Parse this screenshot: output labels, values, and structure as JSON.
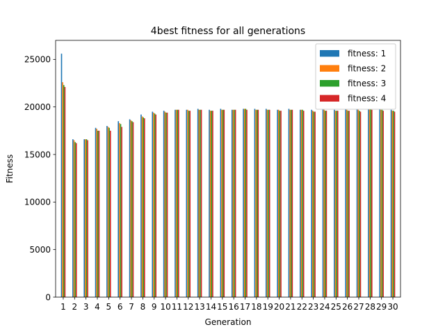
{
  "chart_data": {
    "type": "bar",
    "title": "4best fitness for all generations",
    "xlabel": "Generation",
    "ylabel": "Fitness",
    "ylim": [
      0,
      27000
    ],
    "yticks": [
      0,
      5000,
      10000,
      15000,
      20000,
      25000
    ],
    "ytick_labels": [
      "0",
      "5000",
      "10000",
      "15000",
      "20000",
      "25000"
    ],
    "categories": [
      "1",
      "2",
      "3",
      "4",
      "5",
      "6",
      "7",
      "8",
      "9",
      "10",
      "11",
      "12",
      "13",
      "14",
      "15",
      "16",
      "17",
      "18",
      "19",
      "20",
      "21",
      "22",
      "23",
      "24",
      "25",
      "26",
      "27",
      "28",
      "29",
      "30"
    ],
    "grid": false,
    "legend_position": "top-right",
    "series": [
      {
        "name": "fitness: 1",
        "color": "#1f77b4",
        "values": [
          25600,
          16600,
          16600,
          17800,
          18000,
          18500,
          18700,
          19200,
          19500,
          19600,
          19700,
          19700,
          19800,
          19700,
          19800,
          19700,
          19800,
          19800,
          19800,
          19700,
          19800,
          19700,
          19700,
          19800,
          19700,
          19800,
          19800,
          19800,
          19800,
          19700
        ]
      },
      {
        "name": "fitness: 2",
        "color": "#ff7f0e",
        "values": [
          22600,
          16500,
          16600,
          17700,
          17900,
          18300,
          18600,
          19000,
          19400,
          19500,
          19700,
          19700,
          19700,
          19600,
          19700,
          19700,
          19800,
          19700,
          19700,
          19700,
          19700,
          19700,
          19600,
          19700,
          19600,
          19700,
          19700,
          19800,
          19700,
          19600
        ]
      },
      {
        "name": "fitness: 3",
        "color": "#2ca02c",
        "values": [
          22300,
          16300,
          16600,
          17500,
          17800,
          18200,
          18500,
          18900,
          19300,
          19400,
          19700,
          19600,
          19700,
          19600,
          19700,
          19700,
          19800,
          19700,
          19700,
          19600,
          19700,
          19700,
          19500,
          19600,
          19600,
          19600,
          19600,
          19800,
          19700,
          19600
        ]
      },
      {
        "name": "fitness: 4",
        "color": "#d62728",
        "values": [
          22100,
          16200,
          16500,
          17500,
          17500,
          17900,
          18400,
          18800,
          19200,
          19400,
          19700,
          19600,
          19700,
          19600,
          19700,
          19700,
          19700,
          19700,
          19700,
          19600,
          19700,
          19600,
          19500,
          19600,
          19600,
          19600,
          19500,
          19700,
          19600,
          19500
        ]
      }
    ]
  }
}
